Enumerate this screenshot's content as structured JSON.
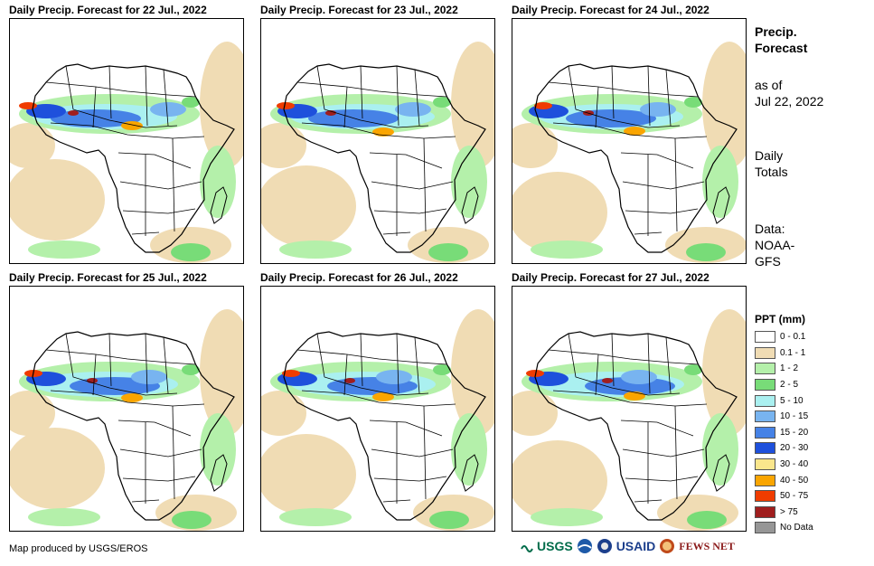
{
  "panels": [
    {
      "title": "Daily Precip. Forecast for 22 Jul., 2022"
    },
    {
      "title": "Daily Precip. Forecast for 23 Jul., 2022"
    },
    {
      "title": "Daily Precip. Forecast for 24 Jul., 2022"
    },
    {
      "title": "Daily Precip. Forecast for 25 Jul., 2022"
    },
    {
      "title": "Daily Precip. Forecast for 26 Jul., 2022"
    },
    {
      "title": "Daily Precip. Forecast for 27 Jul., 2022"
    }
  ],
  "sidebar": {
    "title_line1": "Precip.",
    "title_line2": "Forecast",
    "asof_line1": "as of",
    "asof_line2": "Jul 22, 2022",
    "totals_line1": "Daily",
    "totals_line2": "Totals",
    "data_line1": "Data:",
    "data_line2": "NOAA-",
    "data_line3": "GFS"
  },
  "legend": {
    "title": "PPT (mm)",
    "items": [
      {
        "label": "0 - 0.1",
        "color": "#ffffff"
      },
      {
        "label": "0.1 - 1",
        "color": "#f0dcb4"
      },
      {
        "label": "1 - 2",
        "color": "#b4f0aa"
      },
      {
        "label": "2 - 5",
        "color": "#78dc78"
      },
      {
        "label": "5 - 10",
        "color": "#aaf0f0"
      },
      {
        "label": "10 - 15",
        "color": "#78b4f0"
      },
      {
        "label": "15 - 20",
        "color": "#4682e6"
      },
      {
        "label": "20 - 30",
        "color": "#1e50dc"
      },
      {
        "label": "30 - 40",
        "color": "#fae68c"
      },
      {
        "label": "40 - 50",
        "color": "#faa500"
      },
      {
        "label": "50 - 75",
        "color": "#f03c00"
      },
      {
        "label": "> 75",
        "color": "#a01e1e"
      },
      {
        "label": "No Data",
        "color": "#969696"
      }
    ]
  },
  "footer": {
    "credit": "Map produced by USGS/EROS",
    "logos": [
      "USGS",
      "USAID",
      "FEWS NET"
    ]
  }
}
